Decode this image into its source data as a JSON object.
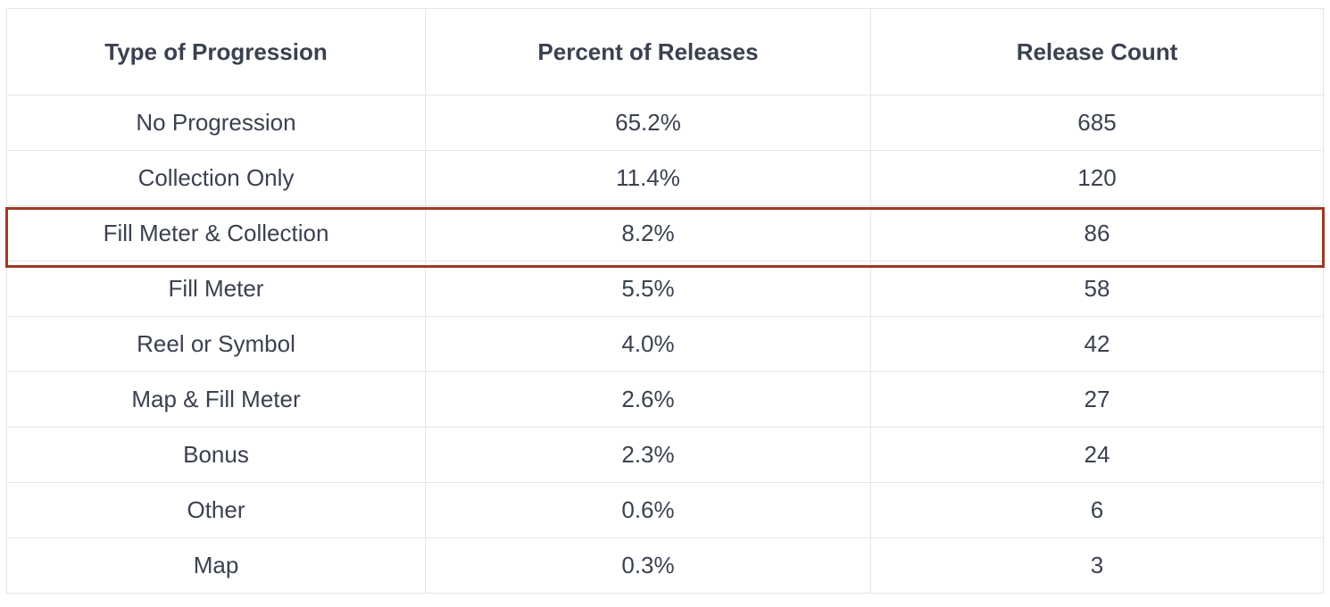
{
  "table": {
    "headers": [
      "Type of Progression",
      "Percent of Releases",
      "Release Count"
    ],
    "rows": [
      [
        "No Progression",
        "65.2%",
        "685"
      ],
      [
        "Collection Only",
        "11.4%",
        "120"
      ],
      [
        "Fill Meter & Collection",
        "8.2%",
        "86"
      ],
      [
        "Fill Meter",
        "5.5%",
        "58"
      ],
      [
        "Reel or Symbol",
        "4.0%",
        "42"
      ],
      [
        "Map & Fill Meter",
        "2.6%",
        "27"
      ],
      [
        "Bonus",
        "2.3%",
        "24"
      ],
      [
        "Other",
        "0.6%",
        "6"
      ],
      [
        "Map",
        "0.3%",
        "3"
      ]
    ],
    "highlighted_row": "Fill Meter & Collection",
    "highlight_color": "#9e3a22"
  }
}
